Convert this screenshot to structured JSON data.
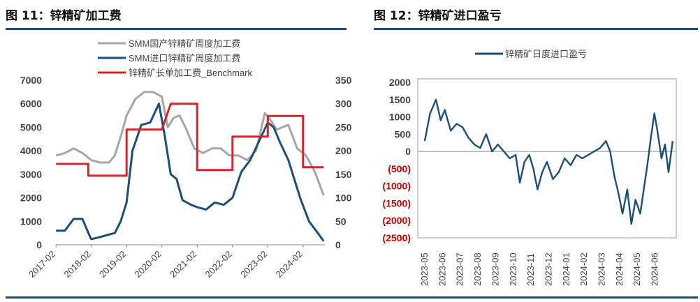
{
  "figures": {
    "left_title": "图 11：锌精矿加工费",
    "right_title": "图 12：锌精矿进口盈亏"
  },
  "colors": {
    "rule": "#1b4d7a",
    "gray": "#a6a6a6",
    "navy": "#1a4f7a",
    "red": "#d9232a",
    "neg_label": "#cc0000"
  },
  "chart_data": [
    {
      "type": "line",
      "title": "",
      "x_ticks": [
        "2017-02",
        "2018-02",
        "2019-02",
        "2020-02",
        "2021-02",
        "2022-02",
        "2023-02",
        "2024-02"
      ],
      "ylim_left": [
        0,
        7000
      ],
      "y_ticks_left": [
        "0",
        "1000",
        "2000",
        "3000",
        "4000",
        "5000",
        "6000",
        "7000"
      ],
      "ylim_right": [
        0,
        350
      ],
      "y_ticks_right": [
        "0",
        "50",
        "100",
        "150",
        "200",
        "250",
        "300",
        "350"
      ],
      "legend_position": "top-center",
      "series": [
        {
          "name": "SMM国产锌精矿周度加工费",
          "axis": "left",
          "color": "gray",
          "points": [
            [
              "2017-02",
              3800
            ],
            [
              "2017-05",
              3900
            ],
            [
              "2017-08",
              4100
            ],
            [
              "2017-11",
              3900
            ],
            [
              "2018-02",
              3600
            ],
            [
              "2018-05",
              3500
            ],
            [
              "2018-08",
              3500
            ],
            [
              "2018-10",
              3800
            ],
            [
              "2018-12",
              4600
            ],
            [
              "2019-02",
              5500
            ],
            [
              "2019-05",
              6200
            ],
            [
              "2019-08",
              6500
            ],
            [
              "2019-11",
              6500
            ],
            [
              "2020-02",
              6300
            ],
            [
              "2020-04",
              5000
            ],
            [
              "2020-06",
              5400
            ],
            [
              "2020-08",
              5500
            ],
            [
              "2020-10",
              5000
            ],
            [
              "2021-01",
              4100
            ],
            [
              "2021-04",
              3900
            ],
            [
              "2021-07",
              4100
            ],
            [
              "2021-10",
              4100
            ],
            [
              "2022-01",
              3800
            ],
            [
              "2022-04",
              3800
            ],
            [
              "2022-07",
              3600
            ],
            [
              "2022-10",
              4000
            ],
            [
              "2023-01",
              5600
            ],
            [
              "2023-03",
              5300
            ],
            [
              "2023-05",
              4900
            ],
            [
              "2023-07",
              5000
            ],
            [
              "2023-09",
              5100
            ],
            [
              "2023-12",
              4100
            ],
            [
              "2024-03",
              3800
            ],
            [
              "2024-06",
              3100
            ],
            [
              "2024-09",
              2100
            ]
          ]
        },
        {
          "name": "SMM进口锌精矿周度加工费",
          "axis": "right",
          "color": "navy",
          "points": [
            [
              "2017-02",
              30
            ],
            [
              "2017-05",
              30
            ],
            [
              "2017-08",
              55
            ],
            [
              "2017-11",
              55
            ],
            [
              "2018-01",
              25
            ],
            [
              "2018-02",
              12
            ],
            [
              "2018-04",
              15
            ],
            [
              "2018-07",
              20
            ],
            [
              "2018-10",
              25
            ],
            [
              "2018-12",
              50
            ],
            [
              "2019-02",
              90
            ],
            [
              "2019-04",
              200
            ],
            [
              "2019-07",
              255
            ],
            [
              "2019-10",
              260
            ],
            [
              "2020-01",
              300
            ],
            [
              "2020-03",
              230
            ],
            [
              "2020-05",
              150
            ],
            [
              "2020-07",
              140
            ],
            [
              "2020-09",
              95
            ],
            [
              "2020-12",
              85
            ],
            [
              "2021-02",
              80
            ],
            [
              "2021-05",
              75
            ],
            [
              "2021-08",
              90
            ],
            [
              "2021-11",
              85
            ],
            [
              "2022-02",
              100
            ],
            [
              "2022-05",
              155
            ],
            [
              "2022-08",
              180
            ],
            [
              "2022-11",
              220
            ],
            [
              "2023-02",
              260
            ],
            [
              "2023-04",
              250
            ],
            [
              "2023-06",
              220
            ],
            [
              "2023-09",
              180
            ],
            [
              "2024-01",
              100
            ],
            [
              "2024-04",
              50
            ],
            [
              "2024-07",
              25
            ],
            [
              "2024-09",
              8
            ]
          ]
        },
        {
          "name": "锌精矿长单加工费_Benchmark",
          "axis": "right",
          "color": "red",
          "points": [
            [
              "2017-02",
              172
            ],
            [
              "2018-01",
              172
            ],
            [
              "2018-01",
              147
            ],
            [
              "2019-02",
              147
            ],
            [
              "2019-02",
              245
            ],
            [
              "2020-02",
              245
            ],
            [
              "2020-05",
              300
            ],
            [
              "2021-02",
              300
            ],
            [
              "2021-02",
              159
            ],
            [
              "2022-02",
              159
            ],
            [
              "2022-02",
              230
            ],
            [
              "2023-02",
              230
            ],
            [
              "2023-02",
              274
            ],
            [
              "2024-02",
              274
            ],
            [
              "2024-02",
              165
            ],
            [
              "2024-09",
              165
            ]
          ]
        }
      ]
    },
    {
      "type": "line",
      "title": "",
      "x_ticks": [
        "2023-05",
        "2023-06",
        "2023-07",
        "2023-08",
        "2023-09",
        "2023-10",
        "2023-11",
        "2023-12",
        "2024-01",
        "2024-02",
        "2024-03",
        "2024-04",
        "2024-05",
        "2024-06"
      ],
      "ylim": [
        -2500,
        2000
      ],
      "y_ticks": [
        "2000",
        "1500",
        "1000",
        "500",
        "0",
        "(500)",
        "(1000)",
        "(1500)",
        "(2000)",
        "(2500)"
      ],
      "legend_position": "top-center",
      "series": [
        {
          "name": "锌精矿日度进口盈亏",
          "color": "navy",
          "points": [
            [
              "2023-05-01",
              300
            ],
            [
              "2023-05-10",
              1100
            ],
            [
              "2023-05-20",
              1500
            ],
            [
              "2023-05-28",
              900
            ],
            [
              "2023-06-05",
              1200
            ],
            [
              "2023-06-15",
              600
            ],
            [
              "2023-06-25",
              800
            ],
            [
              "2023-07-05",
              700
            ],
            [
              "2023-07-15",
              400
            ],
            [
              "2023-07-25",
              200
            ],
            [
              "2023-08-05",
              100
            ],
            [
              "2023-08-15",
              500
            ],
            [
              "2023-08-25",
              0
            ],
            [
              "2023-09-05",
              200
            ],
            [
              "2023-09-15",
              0
            ],
            [
              "2023-09-25",
              -200
            ],
            [
              "2023-10-05",
              -100
            ],
            [
              "2023-10-12",
              -900
            ],
            [
              "2023-10-20",
              -300
            ],
            [
              "2023-10-28",
              -100
            ],
            [
              "2023-11-05",
              -500
            ],
            [
              "2023-11-12",
              -1100
            ],
            [
              "2023-11-20",
              -600
            ],
            [
              "2023-11-28",
              -300
            ],
            [
              "2023-12-08",
              -800
            ],
            [
              "2023-12-18",
              -600
            ],
            [
              "2023-12-28",
              -200
            ],
            [
              "2024-01-08",
              -400
            ],
            [
              "2024-01-18",
              -100
            ],
            [
              "2024-01-28",
              -200
            ],
            [
              "2024-02-08",
              -100
            ],
            [
              "2024-02-18",
              0
            ],
            [
              "2024-02-28",
              100
            ],
            [
              "2024-03-08",
              300
            ],
            [
              "2024-03-15",
              0
            ],
            [
              "2024-03-22",
              -700
            ],
            [
              "2024-03-29",
              -1200
            ],
            [
              "2024-04-06",
              -1800
            ],
            [
              "2024-04-14",
              -1100
            ],
            [
              "2024-04-21",
              -2100
            ],
            [
              "2024-04-28",
              -1400
            ],
            [
              "2024-05-06",
              -1800
            ],
            [
              "2024-05-12",
              -1100
            ],
            [
              "2024-05-18",
              -400
            ],
            [
              "2024-05-24",
              400
            ],
            [
              "2024-05-30",
              1100
            ],
            [
              "2024-06-05",
              600
            ],
            [
              "2024-06-12",
              -200
            ],
            [
              "2024-06-18",
              200
            ],
            [
              "2024-06-24",
              -600
            ],
            [
              "2024-07-01",
              300
            ]
          ]
        }
      ]
    }
  ]
}
